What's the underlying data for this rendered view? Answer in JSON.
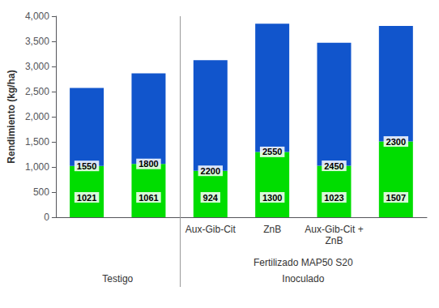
{
  "chart_data": {
    "type": "bar",
    "categories": [
      null,
      null,
      "Aux-Gib-Cit",
      "ZnB",
      "Aux-Gib-Cit +\nZnB",
      null
    ],
    "series": [
      {
        "color": "#00DD00",
        "values": [
          1021,
          1061,
          924,
          1300,
          1023,
          1507
        ]
      },
      {
        "color": "#1155CC",
        "values": [
          1550,
          1800,
          2200,
          2550,
          2450,
          2300
        ]
      }
    ],
    "stacked": true,
    "data_labels": true,
    "ylabel": "Rendimiento (kg/ha)",
    "ylim": [
      0,
      4000
    ],
    "yticks": [
      0,
      500,
      1000,
      1500,
      2000,
      2500,
      3000,
      3500,
      4000
    ],
    "grid": false,
    "groups": [
      {
        "count": 2,
        "labels": [
          "Testigo"
        ]
      },
      {
        "count": 4,
        "labels": [
          "Fertilizado MAP50 S20",
          "Inoculado"
        ]
      }
    ]
  }
}
